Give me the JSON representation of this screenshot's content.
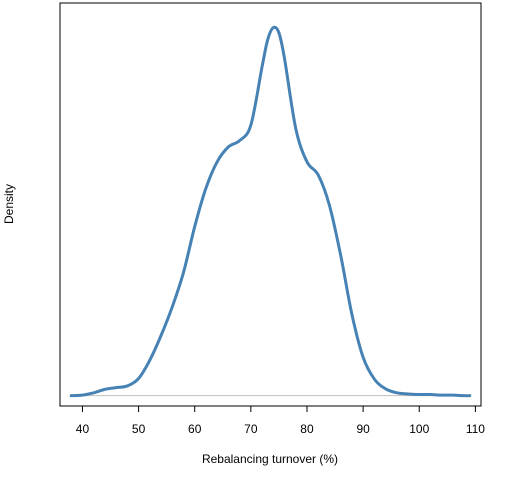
{
  "chart_data": {
    "type": "line",
    "title": "",
    "xlabel": "Rebalancing turnover (%)",
    "ylabel": "Density",
    "xlim": [
      36,
      111
    ],
    "ylim": [
      -0.0018,
      0.0685
    ],
    "x_ticks": [
      40,
      50,
      60,
      70,
      80,
      90,
      100,
      110
    ],
    "y_ticks_shown": false,
    "grid": false,
    "legend": "none",
    "baseline_y": 0,
    "colors": {
      "line": "#4682b4",
      "baseline": "#bebebe",
      "axis": "#000000"
    },
    "series": [
      {
        "points": [
          [
            38,
            0.0
          ],
          [
            40,
            0.0001
          ],
          [
            42,
            0.0005
          ],
          [
            44,
            0.0011
          ],
          [
            46,
            0.0014
          ],
          [
            48,
            0.0017
          ],
          [
            50,
            0.003
          ],
          [
            52,
            0.0062
          ],
          [
            54,
            0.0105
          ],
          [
            56,
            0.0155
          ],
          [
            58,
            0.0215
          ],
          [
            60,
            0.0295
          ],
          [
            62,
            0.0362
          ],
          [
            64,
            0.0408
          ],
          [
            66,
            0.0434
          ],
          [
            68,
            0.0445
          ],
          [
            70,
            0.0472
          ],
          [
            72,
            0.0574
          ],
          [
            73,
            0.0621
          ],
          [
            74,
            0.0642
          ],
          [
            75,
            0.0633
          ],
          [
            76,
            0.0588
          ],
          [
            78,
            0.0466
          ],
          [
            80,
            0.0408
          ],
          [
            82,
            0.0385
          ],
          [
            84,
            0.0332
          ],
          [
            86,
            0.0245
          ],
          [
            88,
            0.0142
          ],
          [
            90,
            0.0067
          ],
          [
            92,
            0.0029
          ],
          [
            94,
            0.0012
          ],
          [
            96,
            0.0005
          ],
          [
            98,
            0.0003
          ],
          [
            100,
            0.0002
          ],
          [
            102,
            0.0002
          ],
          [
            104,
            0.0001
          ],
          [
            106,
            0.0001
          ],
          [
            108,
            0.0
          ],
          [
            109,
            0.0
          ]
        ]
      }
    ]
  }
}
